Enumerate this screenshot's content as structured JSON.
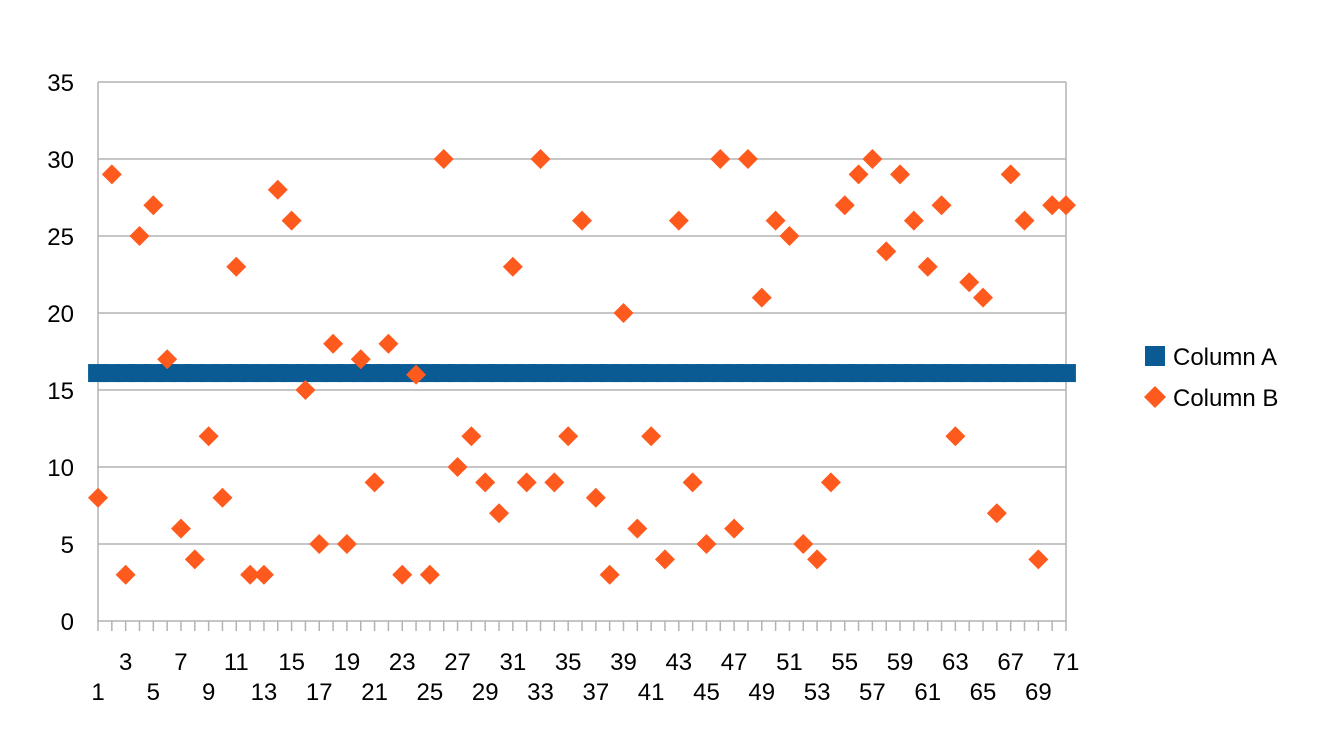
{
  "chart_data": {
    "type": "scatter",
    "title": "",
    "xlabel": "",
    "ylabel": "",
    "ylim": [
      0,
      35
    ],
    "yticks": [
      0,
      5,
      10,
      15,
      20,
      25,
      30,
      35
    ],
    "x": [
      1,
      2,
      3,
      4,
      5,
      6,
      7,
      8,
      9,
      10,
      11,
      12,
      13,
      14,
      15,
      16,
      17,
      18,
      19,
      20,
      21,
      22,
      23,
      24,
      25,
      26,
      27,
      28,
      29,
      30,
      31,
      32,
      33,
      34,
      35,
      36,
      37,
      38,
      39,
      40,
      41,
      42,
      43,
      44,
      45,
      46,
      47,
      48,
      49,
      50,
      51,
      52,
      53,
      54,
      55,
      56,
      57,
      58,
      59,
      60,
      61,
      62,
      63,
      64,
      65,
      66,
      67,
      68,
      69,
      70,
      71
    ],
    "xtick_labels": [
      "1",
      "3",
      "5",
      "7",
      "9",
      "11",
      "13",
      "15",
      "17",
      "19",
      "21",
      "23",
      "25",
      "27",
      "29",
      "31",
      "33",
      "35",
      "37",
      "39",
      "41",
      "43",
      "45",
      "47",
      "49",
      "51",
      "53",
      "55",
      "57",
      "59",
      "61",
      "63",
      "65",
      "67",
      "69",
      "71"
    ],
    "grid": true,
    "legend_position": "right",
    "series": [
      {
        "name": "Column A",
        "marker": "square",
        "color": "#0a5a94",
        "values": [
          16.1,
          16.1,
          16.1,
          16.1,
          16.1,
          16.1,
          16.1,
          16.1,
          16.1,
          16.1,
          16.1,
          16.1,
          16.1,
          16.1,
          16.1,
          16.1,
          16.1,
          16.1,
          16.1,
          16.1,
          16.1,
          16.1,
          16.1,
          16.1,
          16.1,
          16.1,
          16.1,
          16.1,
          16.1,
          16.1,
          16.1,
          16.1,
          16.1,
          16.1,
          16.1,
          16.1,
          16.1,
          16.1,
          16.1,
          16.1,
          16.1,
          16.1,
          16.1,
          16.1,
          16.1,
          16.1,
          16.1,
          16.1,
          16.1,
          16.1,
          16.1,
          16.1,
          16.1,
          16.1,
          16.1,
          16.1,
          16.1,
          16.1,
          16.1,
          16.1,
          16.1,
          16.1,
          16.1,
          16.1,
          16.1,
          16.1,
          16.1,
          16.1,
          16.1,
          16.1,
          16.1
        ]
      },
      {
        "name": "Column B",
        "marker": "diamond",
        "color": "#ff5a1e",
        "values": [
          8,
          29,
          3,
          25,
          27,
          17,
          6,
          4,
          12,
          8,
          23,
          3,
          3,
          28,
          26,
          15,
          5,
          18,
          5,
          17,
          9,
          18,
          3,
          16,
          3,
          30,
          10,
          12,
          9,
          7,
          23,
          9,
          30,
          9,
          12,
          26,
          8,
          3,
          20,
          6,
          12,
          4,
          26,
          9,
          5,
          30,
          6,
          30,
          21,
          26,
          25,
          5,
          4,
          9,
          27,
          29,
          30,
          24,
          29,
          26,
          23,
          27,
          12,
          22,
          21,
          7,
          29,
          26,
          4,
          27,
          27
        ]
      }
    ]
  }
}
